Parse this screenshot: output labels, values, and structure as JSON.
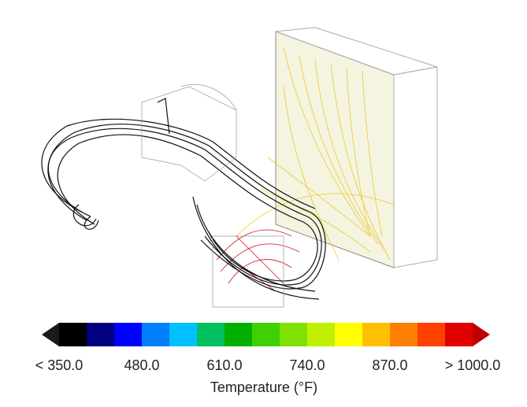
{
  "colorbar": {
    "title": "Temperature (°F)",
    "tick_labels": [
      "< 350.0",
      "480.0",
      "610.0",
      "740.0",
      "870.0",
      "> 1000.0"
    ],
    "low_color": "#1a1a1a",
    "high_color": "#c00000",
    "colors": [
      "#000000",
      "#000080",
      "#0000ff",
      "#0080ff",
      "#00c0ff",
      "#00c060",
      "#00b000",
      "#40d000",
      "#80e000",
      "#c0f000",
      "#ffff00",
      "#ffc000",
      "#ff8000",
      "#ff4000",
      "#e00000"
    ]
  }
}
